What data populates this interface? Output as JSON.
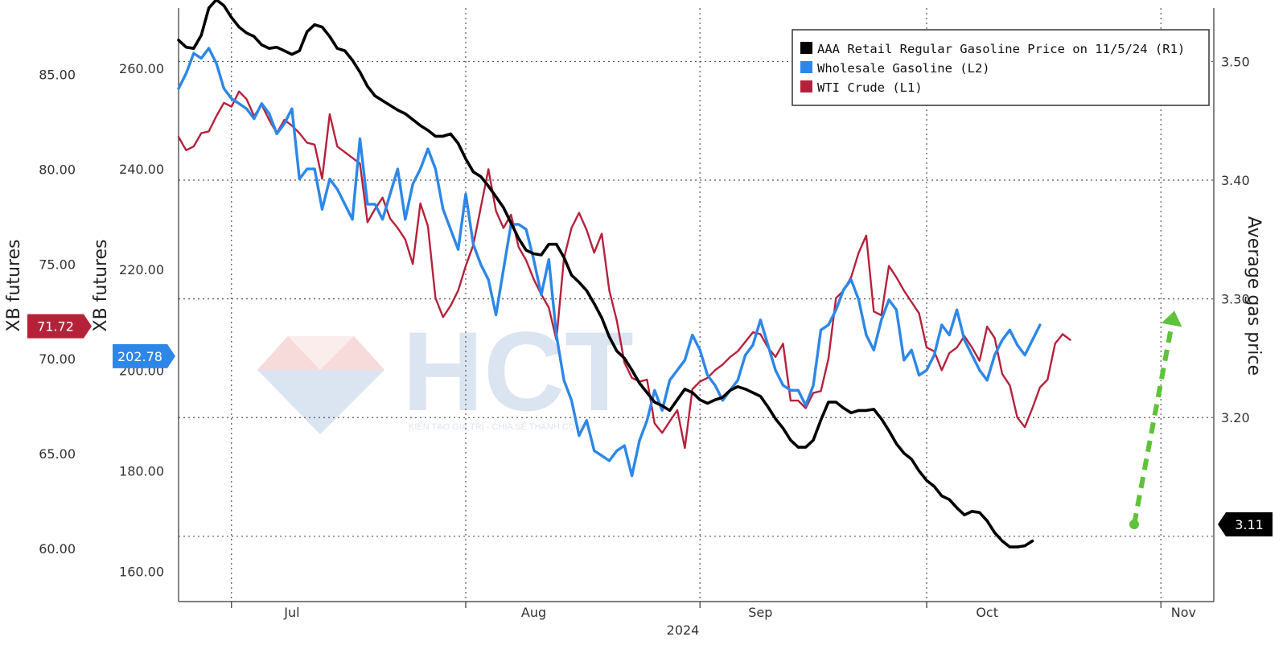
{
  "chart_data": {
    "type": "line",
    "x_labels": [
      "Jul",
      "Aug",
      "Sep",
      "Oct",
      "Nov"
    ],
    "year_label": "2024",
    "axes": {
      "l1": {
        "title": "XB futures",
        "ticks": [
          "60.00",
          "65.00",
          "70.00",
          "75.00",
          "80.00",
          "85.00"
        ],
        "range": [
          57.2,
          88.5
        ]
      },
      "l2": {
        "title": "XB futures",
        "ticks": [
          "160.00",
          "180.00",
          "200.00",
          "220.00",
          "240.00",
          "260.00"
        ],
        "range": [
          154,
          272
        ]
      },
      "r1": {
        "title": "Average gas price",
        "ticks": [
          "3.20",
          "3.30",
          "3.40",
          "3.50"
        ],
        "range": [
          3.045,
          3.545
        ]
      }
    },
    "series": [
      {
        "name": "AAA Retail Regular Gasoline Price on 11/5/24 (R1)",
        "axis": "r1",
        "color": "#000000",
        "x_start": "2024-06-24",
        "y": [
          3.518,
          3.512,
          3.511,
          3.522,
          3.545,
          3.552,
          3.547,
          3.537,
          3.529,
          3.524,
          3.521,
          3.514,
          3.511,
          3.512,
          3.509,
          3.506,
          3.509,
          3.525,
          3.531,
          3.529,
          3.521,
          3.511,
          3.509,
          3.501,
          3.491,
          3.479,
          3.471,
          3.467,
          3.463,
          3.459,
          3.456,
          3.451,
          3.446,
          3.442,
          3.437,
          3.437,
          3.439,
          3.431,
          3.418,
          3.407,
          3.403,
          3.395,
          3.386,
          3.377,
          3.364,
          3.351,
          3.341,
          3.338,
          3.337,
          3.346,
          3.346,
          3.335,
          3.32,
          3.314,
          3.307,
          3.296,
          3.284,
          3.268,
          3.256,
          3.25,
          3.24,
          3.229,
          3.221,
          3.213,
          3.21,
          3.206,
          3.215,
          3.224,
          3.221,
          3.215,
          3.212,
          3.215,
          3.217,
          3.223,
          3.226,
          3.224,
          3.221,
          3.218,
          3.209,
          3.199,
          3.191,
          3.181,
          3.175,
          3.175,
          3.181,
          3.198,
          3.213,
          3.213,
          3.208,
          3.204,
          3.206,
          3.206,
          3.207,
          3.199,
          3.189,
          3.178,
          3.17,
          3.165,
          3.155,
          3.147,
          3.142,
          3.134,
          3.131,
          3.124,
          3.118,
          3.121,
          3.12,
          3.113,
          3.103,
          3.096,
          3.091,
          3.091,
          3.092,
          3.096
        ]
      },
      {
        "name": "Wholesale Gasoline (L2)",
        "axis": "l2",
        "color": "#2d87e8",
        "x_start": "2024-06-24",
        "y": [
          256,
          259,
          263,
          262,
          264,
          261,
          256,
          254,
          253,
          252,
          250,
          253,
          251,
          247,
          249,
          252,
          238,
          240,
          240,
          232,
          238,
          236,
          233,
          230,
          246,
          233,
          233,
          230,
          235,
          240,
          230,
          237,
          240,
          244,
          240,
          232,
          228,
          224,
          235,
          225,
          221,
          218,
          211,
          220,
          229,
          229,
          228,
          222,
          215,
          222,
          207,
          198,
          194,
          187,
          190,
          184,
          183,
          182,
          184,
          185,
          179,
          186,
          190,
          196,
          192,
          198,
          200,
          202,
          207,
          204,
          199,
          197,
          194,
          196,
          198,
          203,
          205,
          210,
          205,
          200,
          197,
          196,
          196,
          193,
          197,
          208,
          209,
          212,
          216,
          218,
          214,
          207,
          204,
          210,
          214,
          212,
          202,
          204,
          199,
          200,
          203,
          209,
          207,
          212,
          206,
          203,
          200,
          198,
          203,
          206,
          208,
          205,
          203,
          206,
          209
        ]
      },
      {
        "name": "WTI Crude (L1)",
        "axis": "l1",
        "color": "#b6213a",
        "x_start": "2024-06-24",
        "y": [
          81.7,
          81.0,
          81.2,
          81.9,
          82.0,
          82.8,
          83.5,
          83.3,
          84.1,
          83.7,
          82.8,
          83.4,
          82.6,
          81.9,
          82.6,
          82.3,
          81.9,
          81.4,
          81.3,
          79.5,
          82.9,
          81.2,
          80.9,
          80.6,
          80.3,
          77.2,
          77.9,
          78.5,
          77.4,
          76.9,
          76.3,
          75.0,
          78.2,
          77.0,
          73.2,
          72.2,
          72.8,
          73.6,
          74.9,
          76.0,
          78.0,
          80.0,
          77.8,
          76.9,
          77.6,
          75.9,
          75.2,
          74.2,
          73.4,
          72.7,
          71.0,
          75.3,
          76.9,
          77.7,
          76.8,
          75.6,
          76.6,
          73.6,
          72.0,
          69.8,
          69.0,
          68.8,
          68.9,
          66.6,
          66.1,
          66.7,
          67.3,
          65.3,
          68.4,
          68.8,
          69.0,
          69.4,
          69.7,
          70.1,
          70.4,
          70.9,
          71.4,
          71.3,
          70.6,
          70.1,
          70.8,
          67.8,
          67.8,
          67.4,
          68.2,
          68.3,
          70.0,
          73.2,
          73.6,
          74.3,
          75.6,
          76.5,
          72.5,
          72.3,
          74.9,
          74.3,
          73.6,
          73.0,
          72.4,
          70.6,
          70.4,
          69.4,
          70.3,
          70.6,
          71.2,
          70.6,
          69.9,
          71.7,
          71.1,
          69.2,
          68.6,
          66.9,
          66.4,
          67.4,
          68.5,
          68.9,
          70.8,
          71.3,
          71.0
        ]
      }
    ],
    "current_values": {
      "l1": "71.72",
      "l2": "202.78",
      "r1": "3.11"
    },
    "arrow": {
      "from": 3.11,
      "to": 3.29,
      "color": "#5ec23a",
      "style": "dashed"
    },
    "colors": {
      "grid": "#555555",
      "black": "#000000",
      "blue": "#2d87e8",
      "red": "#b6213a",
      "green": "#5ec23a"
    },
    "legend_position": "top-right",
    "watermark": {
      "text": "HCT",
      "tagline": "KIẾN TẠO GIÁ TRỊ - CHIA SẺ THÀNH CÔNG"
    }
  }
}
